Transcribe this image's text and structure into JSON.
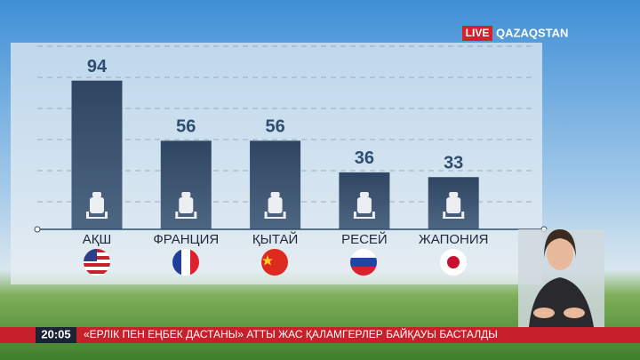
{
  "chart_data": {
    "type": "bar",
    "categories": [
      "АҚШ",
      "ФРАНЦИЯ",
      "ҚЫТАЙ",
      "РЕСЕЙ",
      "ЖАПОНИЯ"
    ],
    "values": [
      94,
      56,
      56,
      36,
      33
    ],
    "color": "#3a5371"
  },
  "channel": {
    "live": "LIVE",
    "name": "QAZAQSTAN"
  },
  "ticker": {
    "time": "20:05",
    "text": "«ЕРЛІК ПЕН ЕҢБЕК ДАСТАНЫ» АТТЫ ЖАС ҚАЛАМГЕРЛЕР БАЙҚАУЫ БАСТАЛДЫ"
  }
}
